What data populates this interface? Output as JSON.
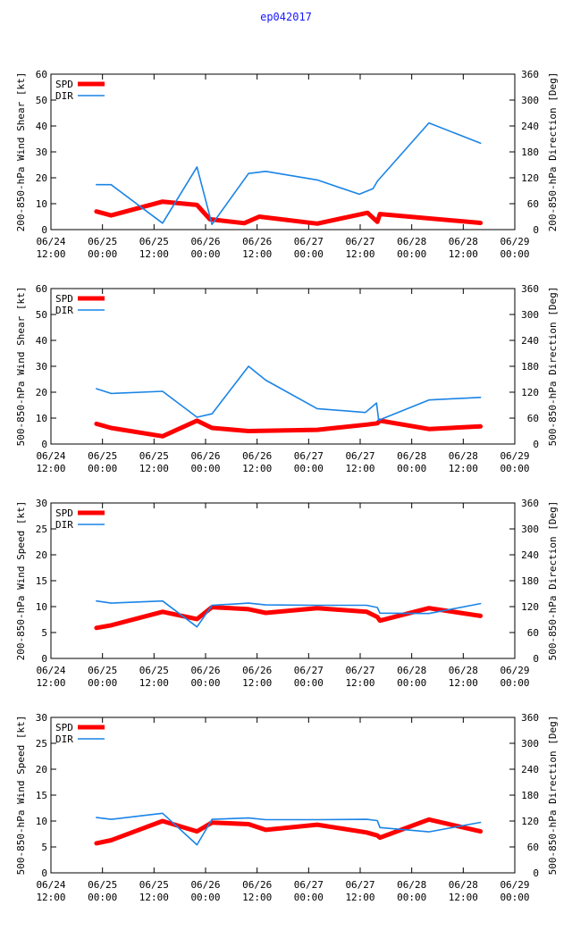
{
  "page": {
    "title": "ep042017"
  },
  "colors": {
    "spd": "#ff0000",
    "dir": "#1a84e6",
    "axis": "#000000",
    "title": "#1a1aff"
  },
  "x_ticks": [
    {
      "x": 0,
      "line1": "06/24",
      "line2": "12:00"
    },
    {
      "x": 12,
      "line1": "06/25",
      "line2": "00:00"
    },
    {
      "x": 24,
      "line1": "06/25",
      "line2": "12:00"
    },
    {
      "x": 36,
      "line1": "06/26",
      "line2": "00:00"
    },
    {
      "x": 48,
      "line1": "06/26",
      "line2": "12:00"
    },
    {
      "x": 60,
      "line1": "06/27",
      "line2": "00:00"
    },
    {
      "x": 72,
      "line1": "06/27",
      "line2": "12:00"
    },
    {
      "x": 84,
      "line1": "06/28",
      "line2": "00:00"
    },
    {
      "x": 96,
      "line1": "06/28",
      "line2": "12:00"
    },
    {
      "x": 108,
      "line1": "06/29",
      "line2": "00:00"
    }
  ],
  "chart_data": [
    {
      "type": "line",
      "ylabel": "200-850-hPa Wind Shear [kt]",
      "y2label": "200-850-hPa Direction [Deg]",
      "xlim": [
        0,
        108
      ],
      "ylim": [
        0,
        60
      ],
      "y2lim": [
        0,
        360
      ],
      "yticks": [
        "0",
        "10",
        "20",
        "30",
        "40",
        "50",
        "60"
      ],
      "y2ticks": [
        "0",
        "60",
        "120",
        "180",
        "240",
        "300",
        "360"
      ],
      "legend": [
        "SPD",
        "DIR"
      ],
      "series": [
        {
          "name": "SPD",
          "axis": "y",
          "x": [
            10.6,
            14,
            26,
            34,
            37,
            45,
            48.5,
            62,
            73.7,
            76,
            76.6,
            100
          ],
          "values": [
            7,
            5.5,
            10.8,
            9.5,
            4,
            2.5,
            5,
            2.3,
            6.5,
            3,
            6,
            2.6
          ]
        },
        {
          "name": "DIR",
          "axis": "y2",
          "x": [
            10.6,
            14,
            26,
            34,
            37.5,
            46,
            50,
            62,
            71.8,
            75,
            76,
            88,
            100
          ],
          "values": [
            104,
            104,
            15,
            145,
            12,
            130,
            135,
            115,
            82,
            95,
            112,
            247,
            200
          ]
        }
      ]
    },
    {
      "type": "line",
      "ylabel": "500-850-hPa Wind Shear [kt]",
      "y2label": "500-850-hPa Direction [Deg]",
      "xlim": [
        0,
        108
      ],
      "ylim": [
        0,
        60
      ],
      "y2lim": [
        0,
        360
      ],
      "yticks": [
        "0",
        "10",
        "20",
        "30",
        "40",
        "50",
        "60"
      ],
      "y2ticks": [
        "0",
        "60",
        "120",
        "180",
        "240",
        "300",
        "360"
      ],
      "legend": [
        "SPD",
        "DIR"
      ],
      "series": [
        {
          "name": "SPD",
          "axis": "y",
          "x": [
            10.6,
            14,
            26,
            34,
            37.5,
            46,
            62,
            73.5,
            76,
            76.6,
            88,
            100
          ],
          "values": [
            7.8,
            6.2,
            3,
            9,
            6.2,
            5,
            5.5,
            7.5,
            8,
            9,
            5.8,
            6.8
          ]
        },
        {
          "name": "DIR",
          "axis": "y2",
          "x": [
            10.6,
            14,
            26,
            34,
            37.5,
            46,
            50,
            62,
            73.2,
            75.8,
            76.3,
            88,
            100
          ],
          "values": [
            128,
            117,
            122,
            62,
            70,
            180,
            148,
            82,
            73,
            95,
            55,
            102,
            108
          ]
        }
      ]
    },
    {
      "type": "line",
      "ylabel": "200-850-hPa Wind Speed [kt]",
      "y2label": "500-850-hPa Direction [Deg]",
      "xlim": [
        0,
        108
      ],
      "ylim": [
        0,
        30
      ],
      "y2lim": [
        0,
        360
      ],
      "yticks": [
        "0",
        "5",
        "10",
        "15",
        "20",
        "25",
        "30"
      ],
      "y2ticks": [
        "0",
        "60",
        "120",
        "180",
        "240",
        "300",
        "360"
      ],
      "legend": [
        "SPD",
        "DIR"
      ],
      "series": [
        {
          "name": "SPD",
          "axis": "y",
          "x": [
            10.6,
            14,
            26,
            34,
            37.5,
            46,
            50,
            62,
            73.5,
            76,
            76.6,
            88,
            100
          ],
          "values": [
            5.9,
            6.4,
            9,
            7.6,
            9.9,
            9.5,
            8.8,
            9.7,
            9,
            8,
            7.3,
            9.7,
            8.2
          ]
        },
        {
          "name": "DIR",
          "axis": "y2",
          "x": [
            10.6,
            14,
            26,
            34,
            37.5,
            46,
            50,
            62,
            73.5,
            76,
            76.6,
            88,
            100
          ],
          "values": [
            133,
            128,
            133,
            73,
            123,
            128,
            124,
            123,
            123,
            118,
            105,
            104,
            127
          ]
        }
      ]
    },
    {
      "type": "line",
      "ylabel": "500-850-hPa Wind Speed [kt]",
      "y2label": "500-850-hPa Direction [Deg]",
      "xlim": [
        0,
        108
      ],
      "ylim": [
        0,
        30
      ],
      "y2lim": [
        0,
        360
      ],
      "yticks": [
        "0",
        "5",
        "10",
        "15",
        "20",
        "25",
        "30"
      ],
      "y2ticks": [
        "0",
        "60",
        "120",
        "180",
        "240",
        "300",
        "360"
      ],
      "legend": [
        "SPD",
        "DIR"
      ],
      "series": [
        {
          "name": "SPD",
          "axis": "y",
          "x": [
            10.6,
            14,
            26,
            34,
            37.5,
            46,
            50,
            62,
            73.5,
            76,
            76.6,
            88,
            100
          ],
          "values": [
            5.7,
            6.3,
            10,
            8,
            9.7,
            9.4,
            8.3,
            9.3,
            7.8,
            7.2,
            6.8,
            10.3,
            8
          ]
        },
        {
          "name": "DIR",
          "axis": "y2",
          "x": [
            10.6,
            14,
            26,
            34,
            37.5,
            46,
            50,
            62,
            73.5,
            76,
            76.6,
            88,
            100
          ],
          "values": [
            128,
            124,
            138,
            65,
            124,
            127,
            123,
            123,
            124,
            121,
            105,
            95,
            117
          ]
        }
      ]
    }
  ]
}
